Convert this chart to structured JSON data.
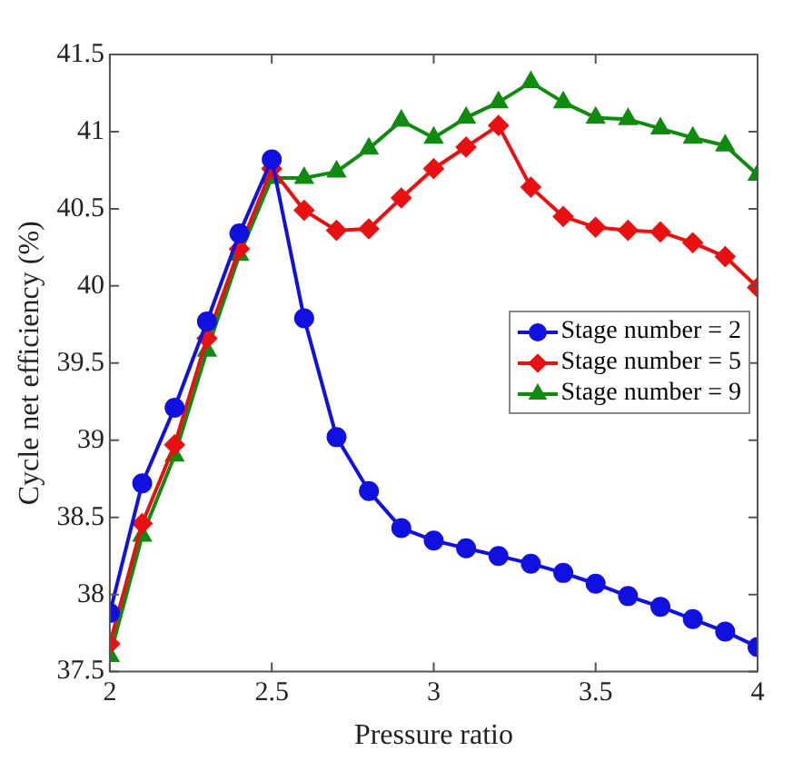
{
  "chart_data": {
    "type": "line",
    "xlabel": "Pressure ratio",
    "ylabel": "Cycle net efficiency (%)",
    "x": [
      2,
      2.1,
      2.2,
      2.3,
      2.4,
      2.5,
      2.6,
      2.7,
      2.8,
      2.9,
      3,
      3.1,
      3.2,
      3.3,
      3.4,
      3.5,
      3.6,
      3.7,
      3.8,
      3.9,
      4
    ],
    "xlim": [
      2,
      4
    ],
    "xticks": [
      2,
      2.5,
      3,
      3.5,
      4
    ],
    "ylim": [
      37.5,
      41.5
    ],
    "yticks": [
      37.5,
      38,
      38.5,
      39,
      39.5,
      40,
      40.5,
      41,
      41.5
    ],
    "grid": false,
    "legend": "right",
    "line_style": "solid",
    "series": [
      {
        "name": "Stage number = 2",
        "color": "#1010e0",
        "marker": "circle",
        "values": [
          37.88,
          38.72,
          39.21,
          39.77,
          40.34,
          40.82,
          39.79,
          39.02,
          38.67,
          38.43,
          38.35,
          38.3,
          38.25,
          38.2,
          38.14,
          38.07,
          37.99,
          37.92,
          37.84,
          37.76,
          37.66
        ]
      },
      {
        "name": "Stage number = 5",
        "color": "#e81010",
        "marker": "diamond",
        "values": [
          37.68,
          38.46,
          38.97,
          39.66,
          40.24,
          40.76,
          40.49,
          40.36,
          40.37,
          40.57,
          40.76,
          40.9,
          41.04,
          40.64,
          40.45,
          40.38,
          40.36,
          40.35,
          40.28,
          40.19,
          39.99
        ]
      },
      {
        "name": "Stage number = 9",
        "color": "#108a10",
        "marker": "triangle",
        "values": [
          37.6,
          38.38,
          38.9,
          39.58,
          40.2,
          40.7,
          40.7,
          40.74,
          40.89,
          41.07,
          40.96,
          41.09,
          41.19,
          41.32,
          41.19,
          41.09,
          41.08,
          41.02,
          40.96,
          40.91,
          40.72
        ]
      }
    ]
  }
}
